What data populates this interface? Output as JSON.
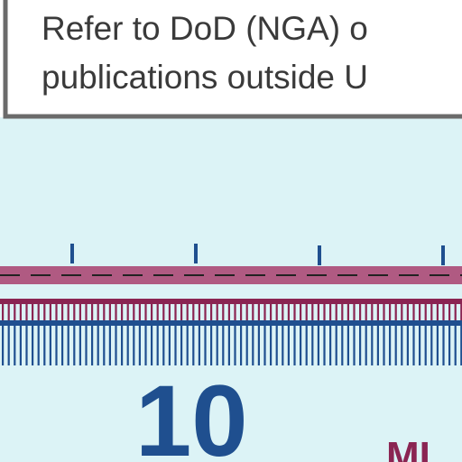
{
  "notice": {
    "line1": "Refer to DoD (NGA) o",
    "line2": "publications outside U"
  },
  "scale": {
    "number_label": "10",
    "partial_label": "MI"
  },
  "colors": {
    "water": "#dcf3f6",
    "notice_bg": "#ffffff",
    "notice_border": "#6b6b6b",
    "magenta_band": "#b05a82",
    "magenta_ticks": "#8a2452",
    "blue_ticks": "#1f4f8f",
    "number": "#1f4f8f"
  }
}
